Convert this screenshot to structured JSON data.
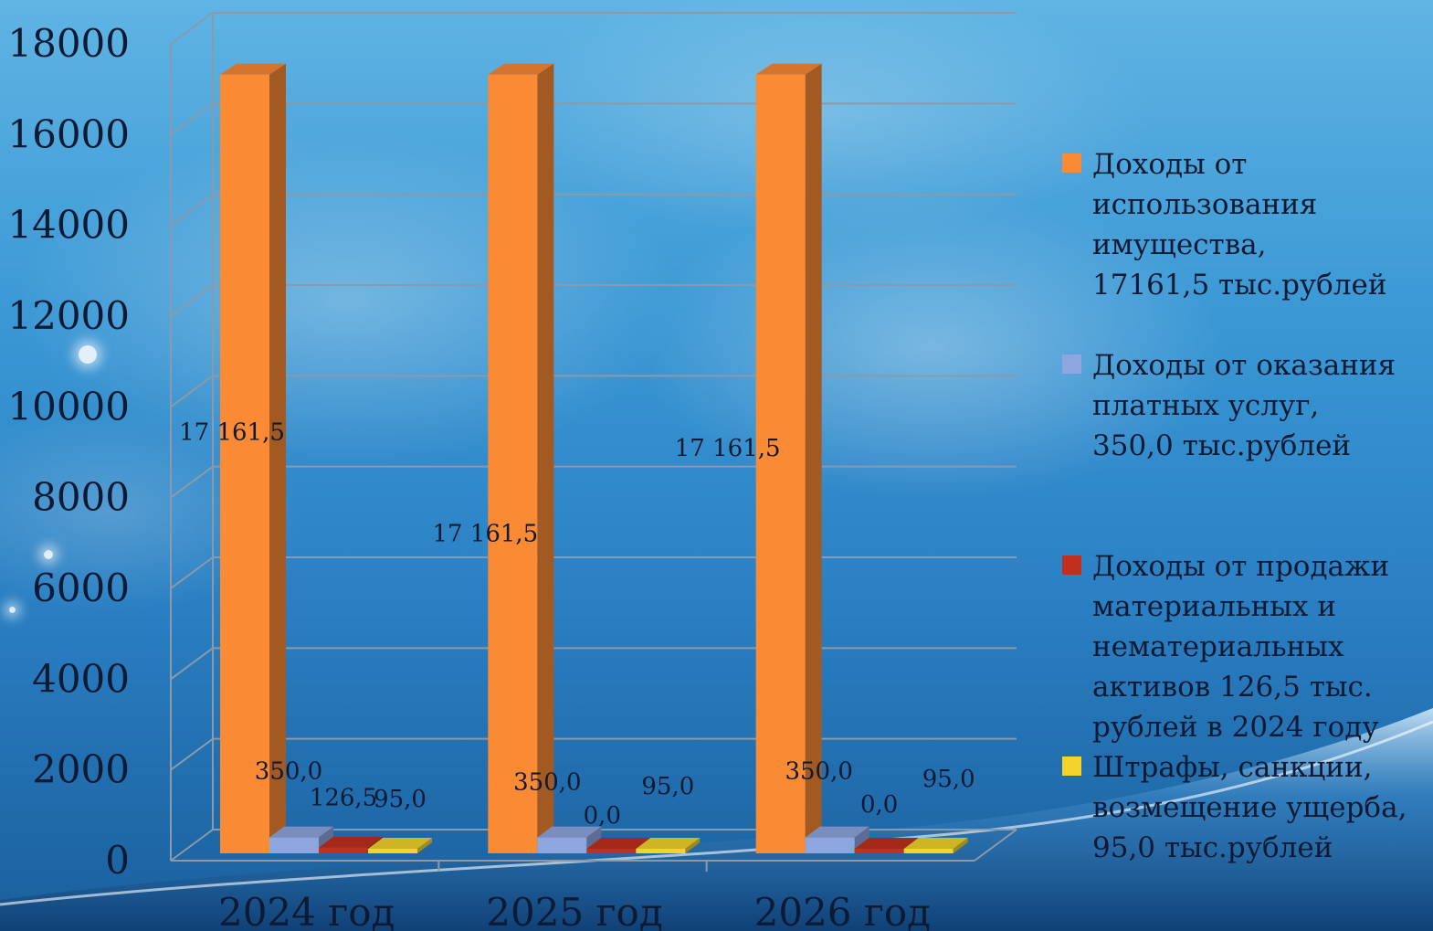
{
  "chart_data": {
    "type": "bar",
    "categories": [
      "2024 год",
      "2025 год",
      "2026 год"
    ],
    "series": [
      {
        "name": "Доходы от использования имущества, 17161,5 тыс.рублей",
        "values": [
          17161.5,
          17161.5,
          17161.5
        ],
        "labels": [
          "17 161,5",
          "17 161,5",
          "17 161,5"
        ],
        "color": "#fb8a35"
      },
      {
        "name": "Доходы от оказания платных услуг, 350,0 тыс.рублей",
        "values": [
          350.0,
          350.0,
          350.0
        ],
        "labels": [
          "350,0",
          "350,0",
          "350,0"
        ],
        "color": "#8ea6e0"
      },
      {
        "name": "Доходы от продажи материальных и нематериальных активов 126,5 тыс. рублей в 2024 году",
        "values": [
          126.5,
          0.0,
          0.0
        ],
        "labels": [
          "126,5",
          "0,0",
          "0,0"
        ],
        "color": "#c0301c"
      },
      {
        "name": "Штрафы, санкции, возмещение ущерба, 95,0 тыс.рублей",
        "values": [
          95.0,
          95.0,
          95.0
        ],
        "labels": [
          "95,0",
          "95,0",
          "95,0"
        ],
        "color": "#f4d42c"
      }
    ],
    "y_ticks": [
      "0",
      "2000",
      "4000",
      "6000",
      "8000",
      "10000",
      "12000",
      "14000",
      "16000",
      "18000"
    ],
    "ylim": [
      0,
      18000
    ],
    "grid": true,
    "legend_position": "right",
    "projection": "3d-clustered-columns"
  },
  "legend": {
    "items": [
      {
        "text": "Доходы от\nиспользования\nимущества,\n17161,5 тыс.рублей",
        "color": "#fb8a35"
      },
      {
        "text": "Доходы от оказания\nплатных услуг,\n350,0 тыс.рублей",
        "color": "#8ea6e0"
      },
      {
        "text": "Доходы от продажи\nматериальных и\nнематериальных\nактивов 126,5 тыс.\nрублей в 2024 году",
        "color": "#c0301c"
      },
      {
        "text": "Штрафы, санкции,\nвозмещение ущерба,\n95,0 тыс.рублей",
        "color": "#f4d42c"
      }
    ]
  }
}
